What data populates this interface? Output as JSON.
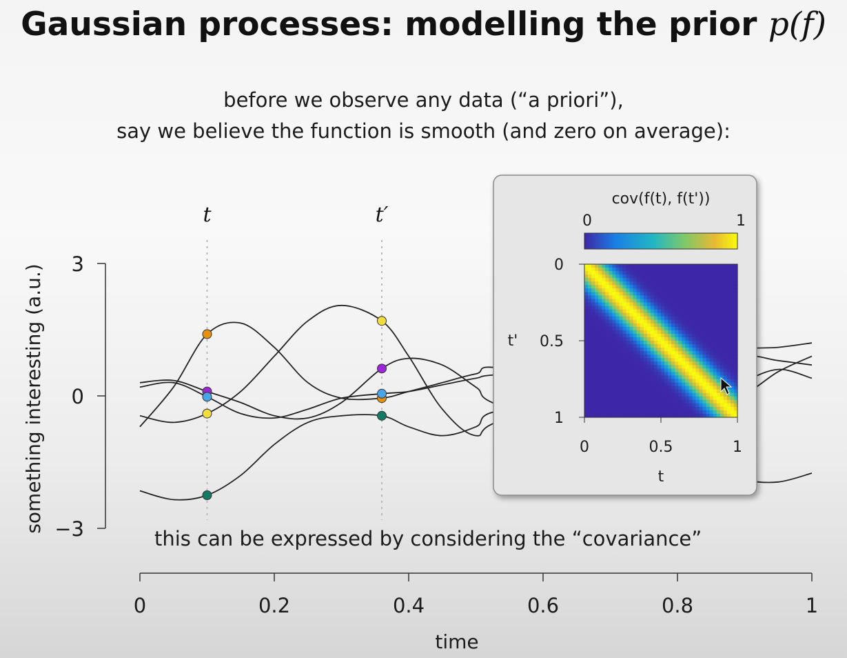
{
  "slide": {
    "title_prefix": "Gaussian processes: modelling the prior ",
    "title_math": "p(f)",
    "subtitle_line1": "before we observe any data (“a priori”),",
    "subtitle_line2": "say we believe the function is smooth (and zero on average):",
    "footnote": "this can be expressed by considering the “covariance”"
  },
  "chart_data": [
    {
      "type": "line",
      "xlabel": "time",
      "ylabel": "something interesting (a.u.)",
      "xlim": [
        0,
        1
      ],
      "ylim": [
        -3,
        3
      ],
      "xticks": [
        0,
        0.2,
        0.4,
        0.6,
        0.8,
        1
      ],
      "xtick_labels": [
        "0",
        "0.2",
        "0.4",
        "0.6",
        "0.8",
        "1"
      ],
      "yticks": [
        3,
        0,
        -3
      ],
      "ytick_labels": [
        "3",
        "0",
        "−3"
      ],
      "line_color": "#222222",
      "markers": [
        {
          "label": "t",
          "x": 0.1
        },
        {
          "label": "t′",
          "x": 0.36
        }
      ],
      "series": [
        {
          "color": "#e8900c",
          "x": [
            0,
            0.05,
            0.1,
            0.15,
            0.2,
            0.25,
            0.3,
            0.36,
            0.4,
            0.45,
            0.5,
            0.55,
            0.85,
            0.9,
            0.95,
            1.0
          ],
          "y": [
            -0.7,
            0.2,
            1.4,
            1.65,
            1.1,
            0.3,
            -0.05,
            -0.05,
            0.1,
            0.3,
            0.5,
            0.6,
            -0.35,
            0.3,
            0.6,
            0.4
          ]
        },
        {
          "color": "#f3dd3d",
          "x": [
            0,
            0.05,
            0.1,
            0.15,
            0.2,
            0.25,
            0.3,
            0.36,
            0.4,
            0.45,
            0.5,
            0.55,
            0.85,
            0.9,
            0.95,
            1.0
          ],
          "y": [
            -0.45,
            -0.6,
            -0.4,
            0.1,
            0.9,
            1.7,
            2.05,
            1.7,
            0.9,
            -0.3,
            -0.9,
            -0.5,
            0.55,
            0.9,
            0.8,
            0.7
          ]
        },
        {
          "color": "#9b27d8",
          "x": [
            0,
            0.05,
            0.1,
            0.15,
            0.2,
            0.25,
            0.3,
            0.36,
            0.4,
            0.45,
            0.5,
            0.55,
            0.85,
            0.9,
            0.95,
            1.0
          ],
          "y": [
            0.3,
            0.35,
            0.1,
            -0.15,
            -0.45,
            -0.5,
            -0.15,
            0.62,
            0.85,
            0.7,
            0.2,
            -0.3,
            -1.6,
            -1.9,
            -1.95,
            -1.75
          ]
        },
        {
          "color": "#4aa5e8",
          "x": [
            0,
            0.05,
            0.1,
            0.15,
            0.2,
            0.25,
            0.3,
            0.36,
            0.4,
            0.45,
            0.5,
            0.55,
            0.85,
            0.9,
            0.95,
            1.0
          ],
          "y": [
            0.2,
            0.3,
            -0.02,
            -0.4,
            -0.5,
            -0.3,
            -0.05,
            0.05,
            0.1,
            0.25,
            0.4,
            0.5,
            0.75,
            1.05,
            1.1,
            1.2
          ]
        },
        {
          "color": "#137a65",
          "x": [
            0,
            0.05,
            0.1,
            0.15,
            0.2,
            0.25,
            0.3,
            0.36,
            0.4,
            0.45,
            0.5,
            0.55,
            0.85,
            0.9,
            0.95,
            1.0
          ],
          "y": [
            -2.15,
            -2.35,
            -2.25,
            -1.8,
            -1.1,
            -0.6,
            -0.45,
            -0.45,
            -0.7,
            -0.9,
            -0.7,
            -0.3,
            -0.05,
            0.05,
            0.55,
            0.9
          ]
        }
      ]
    },
    {
      "type": "heatmap",
      "title": "cov(f(t), f(t'))",
      "xlabel": "t",
      "ylabel": "t'",
      "xlim": [
        0,
        1
      ],
      "ylim": [
        0,
        1
      ],
      "xtick_labels": [
        "0",
        "0.5",
        "1"
      ],
      "ytick_labels": [
        "0",
        "0.5",
        "1"
      ],
      "colorbar_labels": [
        "0",
        "1"
      ],
      "colorbar_range": [
        0,
        1
      ],
      "colormap": [
        "#3e26a8",
        "#1a7ee3",
        "#22b7c4",
        "#7cc86a",
        "#e7b932",
        "#f9fb0e"
      ],
      "length_scale": 0.09,
      "function": "exp(-(t - t')^2 / (2 * length_scale^2))"
    }
  ]
}
